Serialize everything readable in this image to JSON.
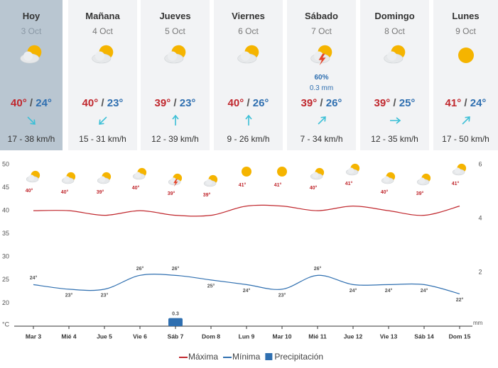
{
  "days": [
    {
      "label": "Hoy",
      "date": "3 Oct",
      "max": "40°",
      "min": "24°",
      "wind": "17 - 38 km/h"
    },
    {
      "label": "Mañana",
      "date": "4 Oct",
      "max": "40°",
      "min": "23°",
      "wind": "15 - 31 km/h"
    },
    {
      "label": "Jueves",
      "date": "5 Oct",
      "max": "39°",
      "min": "23°",
      "wind": "12 - 39 km/h"
    },
    {
      "label": "Viernes",
      "date": "6 Oct",
      "max": "40°",
      "min": "26°",
      "wind": "9 - 26 km/h"
    },
    {
      "label": "Sábado",
      "date": "7 Oct",
      "max": "39°",
      "min": "26°",
      "wind": "7 - 34 km/h",
      "chance": "60%",
      "rain": "0.3 mm"
    },
    {
      "label": "Domingo",
      "date": "8 Oct",
      "max": "39°",
      "min": "25°",
      "wind": "12 - 35 km/h"
    },
    {
      "label": "Lunes",
      "date": "9 Oct",
      "max": "41°",
      "min": "24°",
      "wind": "17 - 50 km/h"
    }
  ],
  "separator": "/",
  "chart_data": {
    "type": "line",
    "categories": [
      "Mar 3",
      "Mié 4",
      "Jue 5",
      "Vie 6",
      "Sáb 7",
      "Dom 8",
      "Lun 9",
      "Mar 10",
      "Mié 11",
      "Jue 12",
      "Vie 13",
      "Sáb 14",
      "Dom 15"
    ],
    "series": [
      {
        "name": "Máxima",
        "color": "#c0272d",
        "values": [
          40,
          40,
          39,
          40,
          39,
          39,
          41,
          41,
          40,
          41,
          40,
          39,
          41
        ],
        "value_labels": [
          "40°",
          "40°",
          "39°",
          "40°",
          "39°",
          "39°",
          "41°",
          "41°",
          "40°",
          "41°",
          "40°",
          "39°",
          "41°"
        ]
      },
      {
        "name": "Mínima",
        "color": "#2f6fb0",
        "values": [
          24,
          23,
          23,
          26,
          26,
          25,
          24,
          23,
          26,
          24,
          24,
          24,
          22
        ],
        "value_labels": [
          "24°",
          "23°",
          "23°",
          "26°",
          "26°",
          "25°",
          "24°",
          "23°",
          "26°",
          "24°",
          "24°",
          "24°",
          "22°"
        ]
      },
      {
        "name": "Precipitación",
        "type": "bar",
        "axis": "y2",
        "color": "#2f6fb0",
        "values": [
          null,
          null,
          null,
          null,
          0.3,
          null,
          null,
          null,
          null,
          null,
          null,
          null,
          null
        ]
      }
    ],
    "ylabel": "°C",
    "ylim": [
      15,
      50
    ],
    "yticks": [
      20,
      25,
      30,
      35,
      40,
      45,
      50
    ],
    "y2label": "mm",
    "y2lim": [
      0,
      6
    ],
    "y2ticks": [
      2,
      4,
      6
    ]
  }
}
